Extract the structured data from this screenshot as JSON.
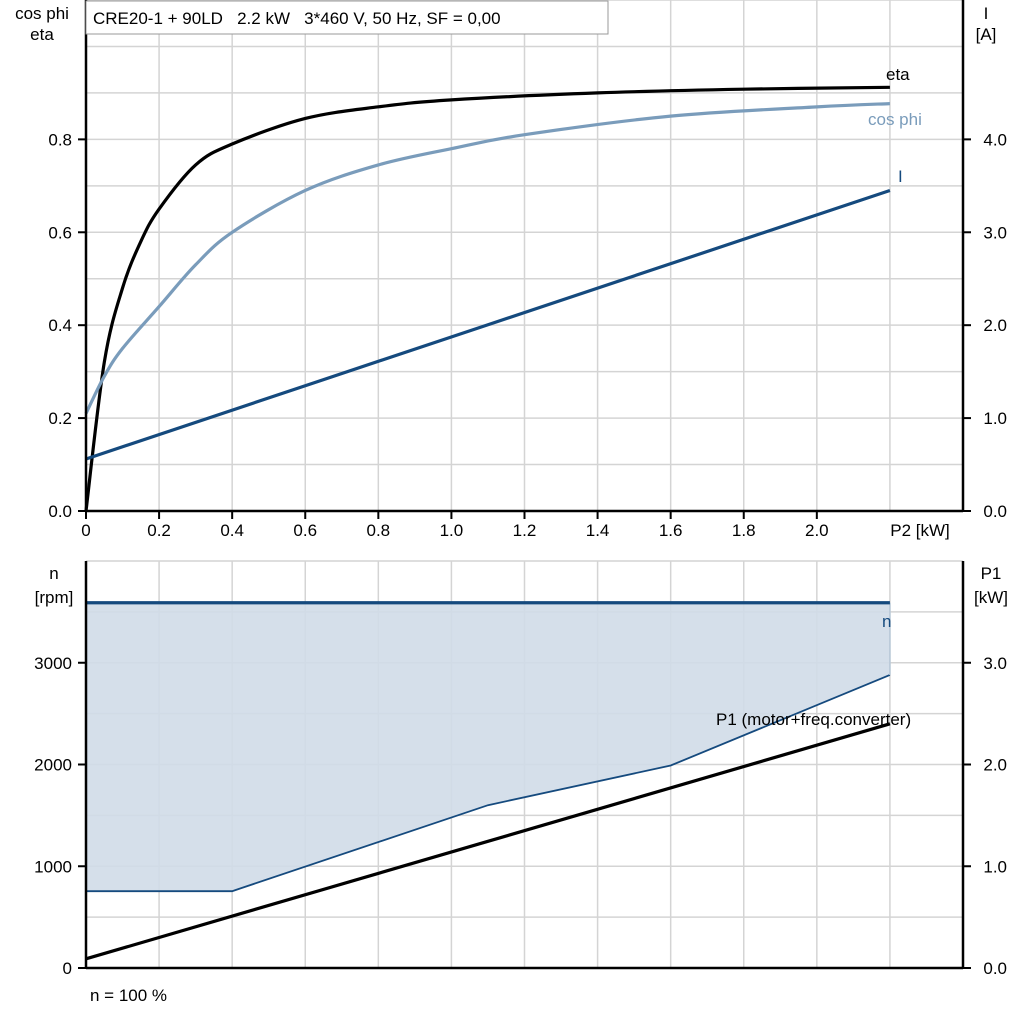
{
  "chart_data": [
    {
      "type": "line",
      "title": "CRE20-1 + 90LD   2.2 kW   3*460 V, 50 Hz, SF = 0,00",
      "xlabel": "P2 [kW]",
      "ylabel_left": [
        "cos phi",
        "eta"
      ],
      "ylabel_right": [
        "I",
        "[A]"
      ],
      "xlim": [
        0,
        2.4
      ],
      "ylim_left": [
        0,
        1.1
      ],
      "ylim_right": [
        0,
        5.5
      ],
      "x_ticks": [
        "0",
        "0.2",
        "0.4",
        "0.6",
        "0.8",
        "1.0",
        "1.2",
        "1.4",
        "1.6",
        "1.8",
        "2.0"
      ],
      "y_ticks_left": [
        "0.0",
        "0.2",
        "0.4",
        "0.6",
        "0.8"
      ],
      "y_ticks_right": [
        "0.0",
        "1.0",
        "2.0",
        "3.0",
        "4.0"
      ],
      "grid": true,
      "series": [
        {
          "name": "eta",
          "axis": "left",
          "color": "#000000",
          "x": [
            0,
            0.05,
            0.1,
            0.15,
            0.2,
            0.3,
            0.4,
            0.6,
            0.8,
            1.0,
            1.4,
            1.8,
            2.2
          ],
          "y": [
            0,
            0.32,
            0.48,
            0.58,
            0.65,
            0.745,
            0.79,
            0.845,
            0.87,
            0.885,
            0.9,
            0.908,
            0.912
          ]
        },
        {
          "name": "cos phi",
          "axis": "left",
          "color": "#7a9cbb",
          "x": [
            0,
            0.05,
            0.1,
            0.2,
            0.3,
            0.4,
            0.6,
            0.8,
            1.0,
            1.2,
            1.6,
            2.0,
            2.2
          ],
          "y": [
            0.21,
            0.29,
            0.35,
            0.44,
            0.53,
            0.6,
            0.69,
            0.745,
            0.78,
            0.81,
            0.85,
            0.87,
            0.877
          ]
        },
        {
          "name": "I",
          "axis": "right",
          "color": "#154a7e",
          "x": [
            0,
            2.2
          ],
          "y": [
            0.56,
            3.45
          ]
        }
      ]
    },
    {
      "type": "line",
      "ylabel_left": [
        "n",
        "[rpm]"
      ],
      "ylabel_right": [
        "P1",
        "[kW]"
      ],
      "xlim": [
        0,
        2.4
      ],
      "ylim_left": [
        0,
        4000
      ],
      "ylim_right": [
        0,
        4.0
      ],
      "y_ticks_left": [
        "0",
        "1000",
        "2000",
        "3000"
      ],
      "y_ticks_right": [
        "0.0",
        "1.0",
        "2.0",
        "3.0"
      ],
      "grid": true,
      "footnote": "n = 100 %",
      "band": {
        "color": "#d0dce8",
        "x_lower": [
          0,
          0.4,
          1.1,
          1.6,
          2.2
        ],
        "n_lower": [
          755,
          755,
          1600,
          1990,
          2880
        ]
      },
      "series": [
        {
          "name": "n",
          "axis": "left",
          "color": "#154a7e",
          "x": [
            0,
            2.2
          ],
          "y": [
            3590,
            3590
          ]
        },
        {
          "name": "P1 (motor+freq.converter)",
          "axis": "right",
          "color": "#000000",
          "x": [
            0,
            2.2
          ],
          "y": [
            0.09,
            2.4
          ]
        }
      ]
    }
  ]
}
